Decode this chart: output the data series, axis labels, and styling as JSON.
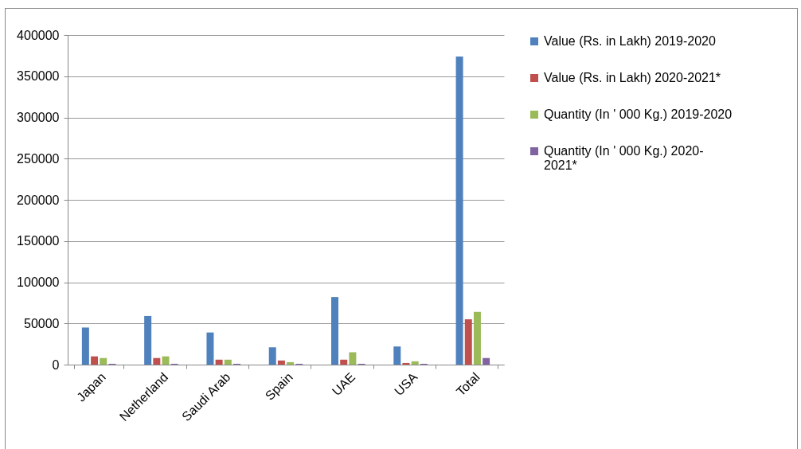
{
  "chart_data": {
    "type": "bar",
    "categories": [
      "Japan",
      "Netherland",
      "Saudi Arab",
      "Spain",
      "UAE",
      "USA",
      "Total"
    ],
    "series": [
      {
        "name": "Value (Rs. in Lakh) 2019-2020",
        "color": "#4f81bd",
        "values": [
          45000,
          59000,
          39000,
          21000,
          82000,
          22000,
          374000
        ]
      },
      {
        "name": "Value (Rs. in Lakh) 2020-2021*",
        "color": "#c0504d",
        "values": [
          10000,
          8000,
          6000,
          5000,
          6000,
          2000,
          55000
        ]
      },
      {
        "name": "Quantity (In ' 000 Kg.) 2019-2020",
        "color": "#9bbb59",
        "values": [
          8000,
          10000,
          6000,
          3000,
          15000,
          4000,
          64000
        ]
      },
      {
        "name": "Quantity (In ' 000 Kg.) 2020-2021*",
        "color": "#8064a2",
        "values": [
          1000,
          1000,
          1000,
          1000,
          1000,
          1000,
          8000
        ]
      }
    ],
    "ylim": [
      0,
      400000
    ],
    "yticks": [
      0,
      50000,
      100000,
      150000,
      200000,
      250000,
      300000,
      350000,
      400000
    ],
    "grid": "y",
    "legend": "right"
  }
}
